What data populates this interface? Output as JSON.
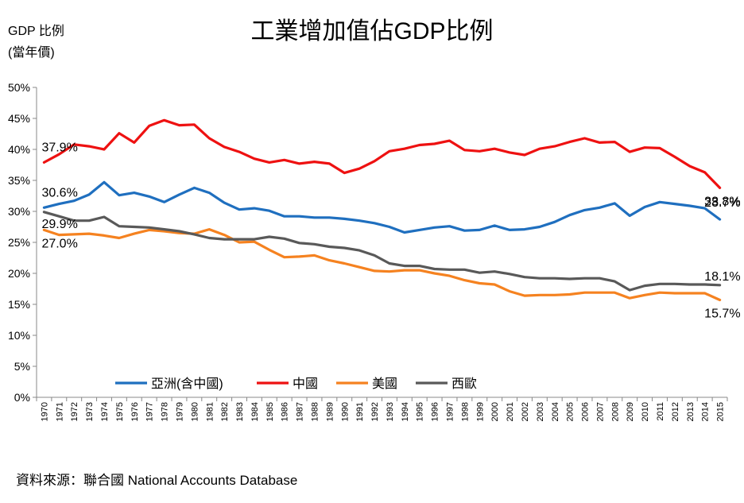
{
  "chart_data": {
    "type": "line",
    "title": "工業增加值佔GDP比例",
    "ylabel": "GDP 比例",
    "ylabel_note": "(當年價)",
    "source": "資料來源：聯合國 National Accounts Database",
    "ylim": [
      0,
      50
    ],
    "yticks": [
      "0%",
      "5%",
      "10%",
      "15%",
      "20%",
      "25%",
      "30%",
      "35%",
      "40%",
      "45%",
      "50%"
    ],
    "categories": [
      "1970",
      "1971",
      "1972",
      "1973",
      "1974",
      "1975",
      "1976",
      "1977",
      "1978",
      "1979",
      "1980",
      "1981",
      "1982",
      "1983",
      "1984",
      "1985",
      "1986",
      "1987",
      "1988",
      "1989",
      "1990",
      "1991",
      "1992",
      "1993",
      "1994",
      "1995",
      "1996",
      "1997",
      "1998",
      "1999",
      "2000",
      "2001",
      "2002",
      "2003",
      "2004",
      "2005",
      "2006",
      "2007",
      "2008",
      "2009",
      "2010",
      "2011",
      "2012",
      "2013",
      "2014",
      "2015"
    ],
    "series": [
      {
        "name": "亞洲(含中國)",
        "color": "#1f6fbf",
        "values": [
          30.6,
          31.2,
          31.7,
          32.7,
          34.7,
          32.6,
          33.0,
          32.4,
          31.5,
          32.7,
          33.8,
          33.0,
          31.4,
          30.3,
          30.5,
          30.1,
          29.2,
          29.2,
          29.0,
          29.0,
          28.8,
          28.5,
          28.1,
          27.5,
          26.6,
          27.0,
          27.4,
          27.6,
          26.9,
          27.0,
          27.7,
          27.0,
          27.1,
          27.5,
          28.3,
          29.4,
          30.2,
          30.6,
          31.3,
          29.3,
          30.7,
          31.5,
          31.2,
          30.9,
          30.5,
          28.7
        ],
        "start_label": "30.6%",
        "end_label": "28.7%"
      },
      {
        "name": "中國",
        "color": "#ee1111",
        "values": [
          37.9,
          39.2,
          40.8,
          40.5,
          40.0,
          42.6,
          41.1,
          43.8,
          44.7,
          43.9,
          44.0,
          41.8,
          40.4,
          39.6,
          38.5,
          37.9,
          38.3,
          37.7,
          38.0,
          37.7,
          36.2,
          36.9,
          38.1,
          39.7,
          40.1,
          40.7,
          40.9,
          41.4,
          39.9,
          39.7,
          40.1,
          39.5,
          39.1,
          40.1,
          40.5,
          41.2,
          41.8,
          41.1,
          41.2,
          39.6,
          40.3,
          40.2,
          38.8,
          37.3,
          36.3,
          33.8
        ],
        "start_label": "37.9%",
        "end_label": "33.8%"
      },
      {
        "name": "美國",
        "color": "#f58220",
        "values": [
          27.0,
          26.2,
          26.3,
          26.4,
          26.1,
          25.7,
          26.4,
          27.0,
          26.8,
          26.5,
          26.4,
          27.1,
          26.2,
          25.0,
          25.1,
          23.8,
          22.6,
          22.7,
          22.9,
          22.1,
          21.6,
          21.0,
          20.4,
          20.3,
          20.5,
          20.5,
          20.0,
          19.6,
          18.9,
          18.4,
          18.2,
          17.1,
          16.4,
          16.5,
          16.5,
          16.6,
          16.9,
          16.9,
          16.9,
          16.0,
          16.5,
          16.9,
          16.8,
          16.8,
          16.8,
          15.7
        ],
        "start_label": "27.0%",
        "end_label": "15.7%"
      },
      {
        "name": "西歐",
        "color": "#595959",
        "values": [
          29.9,
          29.2,
          28.5,
          28.5,
          29.1,
          27.6,
          27.5,
          27.4,
          27.1,
          26.8,
          26.3,
          25.7,
          25.5,
          25.5,
          25.5,
          25.9,
          25.6,
          24.9,
          24.7,
          24.3,
          24.1,
          23.7,
          22.9,
          21.6,
          21.2,
          21.2,
          20.7,
          20.6,
          20.6,
          20.1,
          20.3,
          19.9,
          19.4,
          19.2,
          19.2,
          19.1,
          19.2,
          19.2,
          18.7,
          17.3,
          18.0,
          18.3,
          18.3,
          18.2,
          18.2,
          18.1
        ],
        "start_label": "29.9%",
        "end_label": "18.1%"
      }
    ],
    "legend": [
      "亞洲(含中國)",
      "中國",
      "美國",
      "西歐"
    ],
    "grid": false
  }
}
